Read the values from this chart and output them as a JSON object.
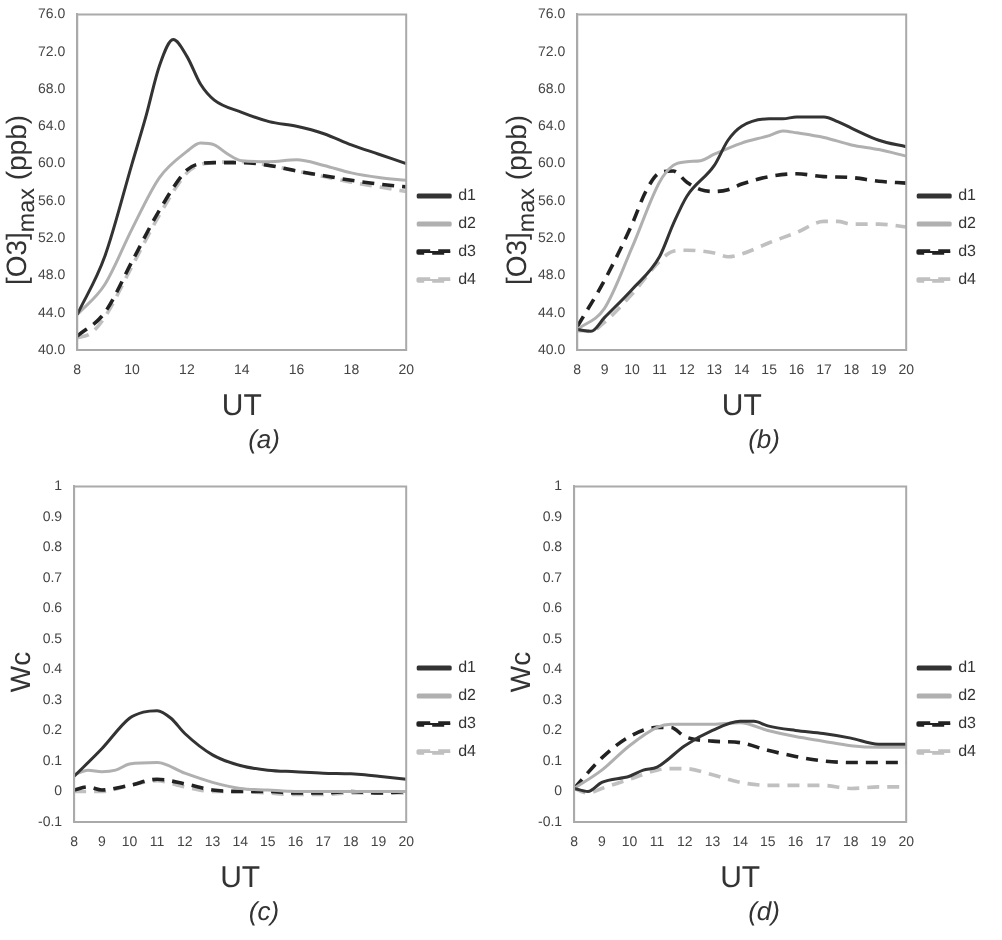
{
  "chart_data": [
    {
      "type": "line",
      "title": "(a)",
      "xlabel": "UT",
      "ylabel": "[O3]$_{max}$ (ppb)",
      "xlim": [
        8,
        20
      ],
      "xticks": [
        8,
        10,
        12,
        14,
        16,
        18,
        20
      ],
      "ylim": [
        40,
        76
      ],
      "yticks": [
        {
          "value": 40,
          "label": "40.0"
        },
        {
          "value": 44,
          "label": "44.0"
        },
        {
          "value": 48,
          "label": "48.0"
        },
        {
          "value": 52,
          "label": "52.0"
        },
        {
          "value": 56,
          "label": "56.0"
        },
        {
          "value": 60,
          "label": "60.0"
        },
        {
          "value": 64,
          "label": "64.0"
        },
        {
          "value": 68,
          "label": "68.0"
        },
        {
          "value": 72,
          "label": "72.0"
        },
        {
          "value": 76,
          "label": "76.0"
        }
      ],
      "grid": false,
      "legend": "right",
      "marker": "none",
      "series": [
        {
          "name": "d1",
          "color": "#333333",
          "line_style": "solid",
          "x": [
            8,
            9,
            10,
            10.5,
            11,
            11.5,
            12,
            12.5,
            13,
            14,
            15,
            16,
            17,
            18,
            19,
            20
          ],
          "values": [
            43.8,
            50,
            60,
            65,
            70.5,
            73.3,
            71.5,
            68.5,
            66.8,
            65.5,
            64.5,
            64,
            63.2,
            62,
            61,
            60
          ]
        },
        {
          "name": "d2",
          "color": "#b0b0b0",
          "line_style": "solid",
          "x": [
            8,
            9,
            10,
            11,
            12,
            12.5,
            13,
            13.5,
            14,
            15,
            16,
            17,
            18,
            19,
            20
          ],
          "values": [
            43.8,
            47,
            53,
            58.5,
            61.3,
            62.2,
            62,
            61,
            60.3,
            60.2,
            60.4,
            59.8,
            59,
            58.5,
            58.2
          ]
        },
        {
          "name": "d3",
          "color": "#222222",
          "line_style": "dashed",
          "x": [
            8,
            9,
            10,
            11,
            12,
            12.5,
            13,
            14,
            15,
            16,
            17,
            18,
            19,
            20
          ],
          "values": [
            41.5,
            44,
            49.5,
            55,
            59.3,
            60,
            60.1,
            60.1,
            59.8,
            59.2,
            58.7,
            58.2,
            57.8,
            57.5
          ]
        },
        {
          "name": "d4",
          "color": "#c0c0c0",
          "line_style": "dashed",
          "x": [
            8,
            8.5,
            9,
            10,
            11,
            12,
            12.5,
            13,
            14,
            15,
            16,
            17,
            18,
            19,
            20
          ],
          "values": [
            41.3,
            41.8,
            43.5,
            49,
            54.5,
            59,
            59.9,
            60.1,
            60.2,
            59.8,
            59.2,
            58.6,
            58,
            57.5,
            57
          ]
        }
      ]
    },
    {
      "type": "line",
      "title": "(b)",
      "xlabel": "UT",
      "ylabel": "[O3]$_{max}$ (ppb)",
      "xlim": [
        8,
        20
      ],
      "xticks": [
        8,
        9,
        10,
        11,
        12,
        13,
        14,
        15,
        16,
        17,
        18,
        19,
        20
      ],
      "ylim": [
        40,
        76
      ],
      "yticks": [
        {
          "value": 40,
          "label": "40.0"
        },
        {
          "value": 44,
          "label": "44.0"
        },
        {
          "value": 48,
          "label": "48.0"
        },
        {
          "value": 52,
          "label": "52.0"
        },
        {
          "value": 56,
          "label": "56.0"
        },
        {
          "value": 60,
          "label": "60.0"
        },
        {
          "value": 64,
          "label": "64.0"
        },
        {
          "value": 68,
          "label": "68.0"
        },
        {
          "value": 72,
          "label": "72.0"
        },
        {
          "value": 76,
          "label": "76.0"
        }
      ],
      "grid": false,
      "legend": "right",
      "marker": "none",
      "series": [
        {
          "name": "d1",
          "color": "#333333",
          "line_style": "solid",
          "x": [
            8,
            8.5,
            9,
            10,
            11,
            11.5,
            12,
            13,
            13.5,
            14,
            15,
            15.5,
            16,
            17,
            17.5,
            18,
            19,
            20
          ],
          "values": [
            42.2,
            42,
            43.5,
            46.5,
            50,
            53.5,
            56.5,
            59.8,
            62.5,
            64,
            64.8,
            64.8,
            65,
            65,
            64.5,
            63.8,
            62.5,
            61.8
          ]
        },
        {
          "name": "d2",
          "color": "#b0b0b0",
          "line_style": "solid",
          "x": [
            8,
            9,
            10,
            11,
            11.5,
            12,
            12.5,
            13,
            14,
            15,
            15.5,
            16,
            17,
            18,
            19,
            20
          ],
          "values": [
            42.2,
            44.5,
            51,
            58,
            59.8,
            60.2,
            60.3,
            61,
            62.2,
            63,
            63.5,
            63.3,
            62.8,
            62,
            61.5,
            60.8
          ]
        },
        {
          "name": "d3",
          "color": "#222222",
          "line_style": "dashed",
          "x": [
            8,
            9,
            10,
            10.5,
            11,
            11.5,
            12,
            12.5,
            13,
            13.5,
            14,
            15,
            16,
            17,
            18,
            19,
            20
          ],
          "values": [
            42.5,
            47.5,
            53.5,
            57,
            59,
            59.2,
            58,
            57.2,
            57,
            57.2,
            57.8,
            58.6,
            58.9,
            58.6,
            58.5,
            58.1,
            57.9
          ]
        },
        {
          "name": "d4",
          "color": "#c0c0c0",
          "line_style": "dashed",
          "x": [
            8,
            8.5,
            9,
            10,
            11,
            11.5,
            12,
            13,
            13.5,
            14,
            15,
            16,
            17,
            17.5,
            18,
            19,
            20
          ],
          "values": [
            42.1,
            42,
            43,
            46,
            49.5,
            50.6,
            50.7,
            50.4,
            50,
            50.3,
            51.5,
            52.6,
            53.8,
            53.8,
            53.5,
            53.5,
            53.2
          ]
        }
      ]
    },
    {
      "type": "line",
      "title": "(c)",
      "xlabel": "UT",
      "ylabel": "Wc",
      "xlim": [
        8,
        20
      ],
      "xticks": [
        8,
        9,
        10,
        11,
        12,
        13,
        14,
        15,
        16,
        17,
        18,
        19,
        20
      ],
      "ylim": [
        -0.1,
        1
      ],
      "yticks": [
        -0.1,
        0,
        0.1,
        0.2,
        0.3,
        0.4,
        0.5,
        0.6,
        0.7,
        0.8,
        0.9,
        1
      ],
      "grid": false,
      "legend": "right",
      "marker": "none",
      "series": [
        {
          "name": "d1",
          "color": "#333333",
          "line_style": "solid",
          "x": [
            8,
            9,
            10,
            10.5,
            11,
            11.5,
            12,
            13,
            14,
            15,
            16,
            17,
            18,
            18.5,
            19,
            20
          ],
          "values": [
            0.05,
            0.14,
            0.24,
            0.26,
            0.265,
            0.24,
            0.19,
            0.12,
            0.085,
            0.07,
            0.065,
            0.06,
            0.058,
            0.055,
            0.05,
            0.04
          ]
        },
        {
          "name": "d2",
          "color": "#b0b0b0",
          "line_style": "solid",
          "x": [
            8,
            8.5,
            9,
            9.5,
            10,
            11,
            12,
            13,
            14,
            15,
            16,
            17,
            18,
            19,
            20
          ],
          "values": [
            0.055,
            0.07,
            0.065,
            0.07,
            0.09,
            0.095,
            0.06,
            0.03,
            0.01,
            0.005,
            0,
            0,
            0,
            0,
            0
          ]
        },
        {
          "name": "d3",
          "color": "#222222",
          "line_style": "dashed",
          "x": [
            8,
            8.5,
            9,
            10,
            11,
            12,
            13,
            14,
            15,
            16,
            17,
            18,
            19,
            20
          ],
          "values": [
            0.005,
            0.015,
            0.005,
            0.02,
            0.04,
            0.025,
            0.005,
            0,
            0,
            -0.005,
            -0.005,
            0,
            -0.005,
            0
          ]
        },
        {
          "name": "d4",
          "color": "#c0c0c0",
          "line_style": "dashed",
          "x": [
            8,
            9,
            10,
            11,
            12,
            13,
            14,
            15,
            16,
            17,
            18,
            19,
            20
          ],
          "values": [
            0,
            0,
            0.02,
            0.035,
            0.015,
            0,
            0,
            -0.005,
            -0.01,
            -0.01,
            -0.005,
            -0.005,
            -0.005
          ]
        }
      ]
    },
    {
      "type": "line",
      "title": "(d)",
      "xlabel": "UT",
      "ylabel": "Wc",
      "xlim": [
        8,
        20
      ],
      "xticks": [
        8,
        9,
        10,
        11,
        12,
        13,
        14,
        15,
        16,
        17,
        18,
        19,
        20
      ],
      "ylim": [
        -0.1,
        1
      ],
      "yticks": [
        -0.1,
        0,
        0.1,
        0.2,
        0.3,
        0.4,
        0.5,
        0.6,
        0.7,
        0.8,
        0.9,
        1
      ],
      "grid": false,
      "legend": "right",
      "marker": "none",
      "series": [
        {
          "name": "d1",
          "color": "#333333",
          "line_style": "solid",
          "x": [
            8,
            8.5,
            9,
            10,
            10.5,
            11,
            12,
            13,
            14,
            14.5,
            15,
            16,
            17,
            18,
            19,
            20
          ],
          "values": [
            0.01,
            0,
            0.03,
            0.05,
            0.07,
            0.08,
            0.15,
            0.2,
            0.23,
            0.23,
            0.215,
            0.2,
            0.19,
            0.175,
            0.155,
            0.155
          ]
        },
        {
          "name": "d2",
          "color": "#b0b0b0",
          "line_style": "solid",
          "x": [
            8,
            9,
            10,
            11,
            11.5,
            12,
            13,
            14,
            15,
            16,
            17,
            18,
            19,
            20
          ],
          "values": [
            0.01,
            0.07,
            0.15,
            0.21,
            0.22,
            0.22,
            0.22,
            0.225,
            0.2,
            0.18,
            0.165,
            0.15,
            0.145,
            0.145
          ]
        },
        {
          "name": "d3",
          "color": "#222222",
          "line_style": "dashed",
          "x": [
            8,
            9,
            10,
            11,
            11.5,
            12,
            13,
            14,
            15,
            16,
            17,
            18,
            19,
            20
          ],
          "values": [
            0.01,
            0.11,
            0.18,
            0.21,
            0.21,
            0.18,
            0.165,
            0.16,
            0.135,
            0.115,
            0.1,
            0.095,
            0.095,
            0.095
          ]
        },
        {
          "name": "d4",
          "color": "#c0c0c0",
          "line_style": "dashed",
          "x": [
            8,
            8.5,
            9,
            10,
            11,
            11.5,
            12,
            13,
            14,
            15,
            16,
            17,
            18,
            19,
            20
          ],
          "values": [
            0.01,
            -0.005,
            0.01,
            0.04,
            0.07,
            0.075,
            0.075,
            0.055,
            0.03,
            0.02,
            0.02,
            0.02,
            0.01,
            0.015,
            0.015
          ]
        }
      ]
    }
  ]
}
